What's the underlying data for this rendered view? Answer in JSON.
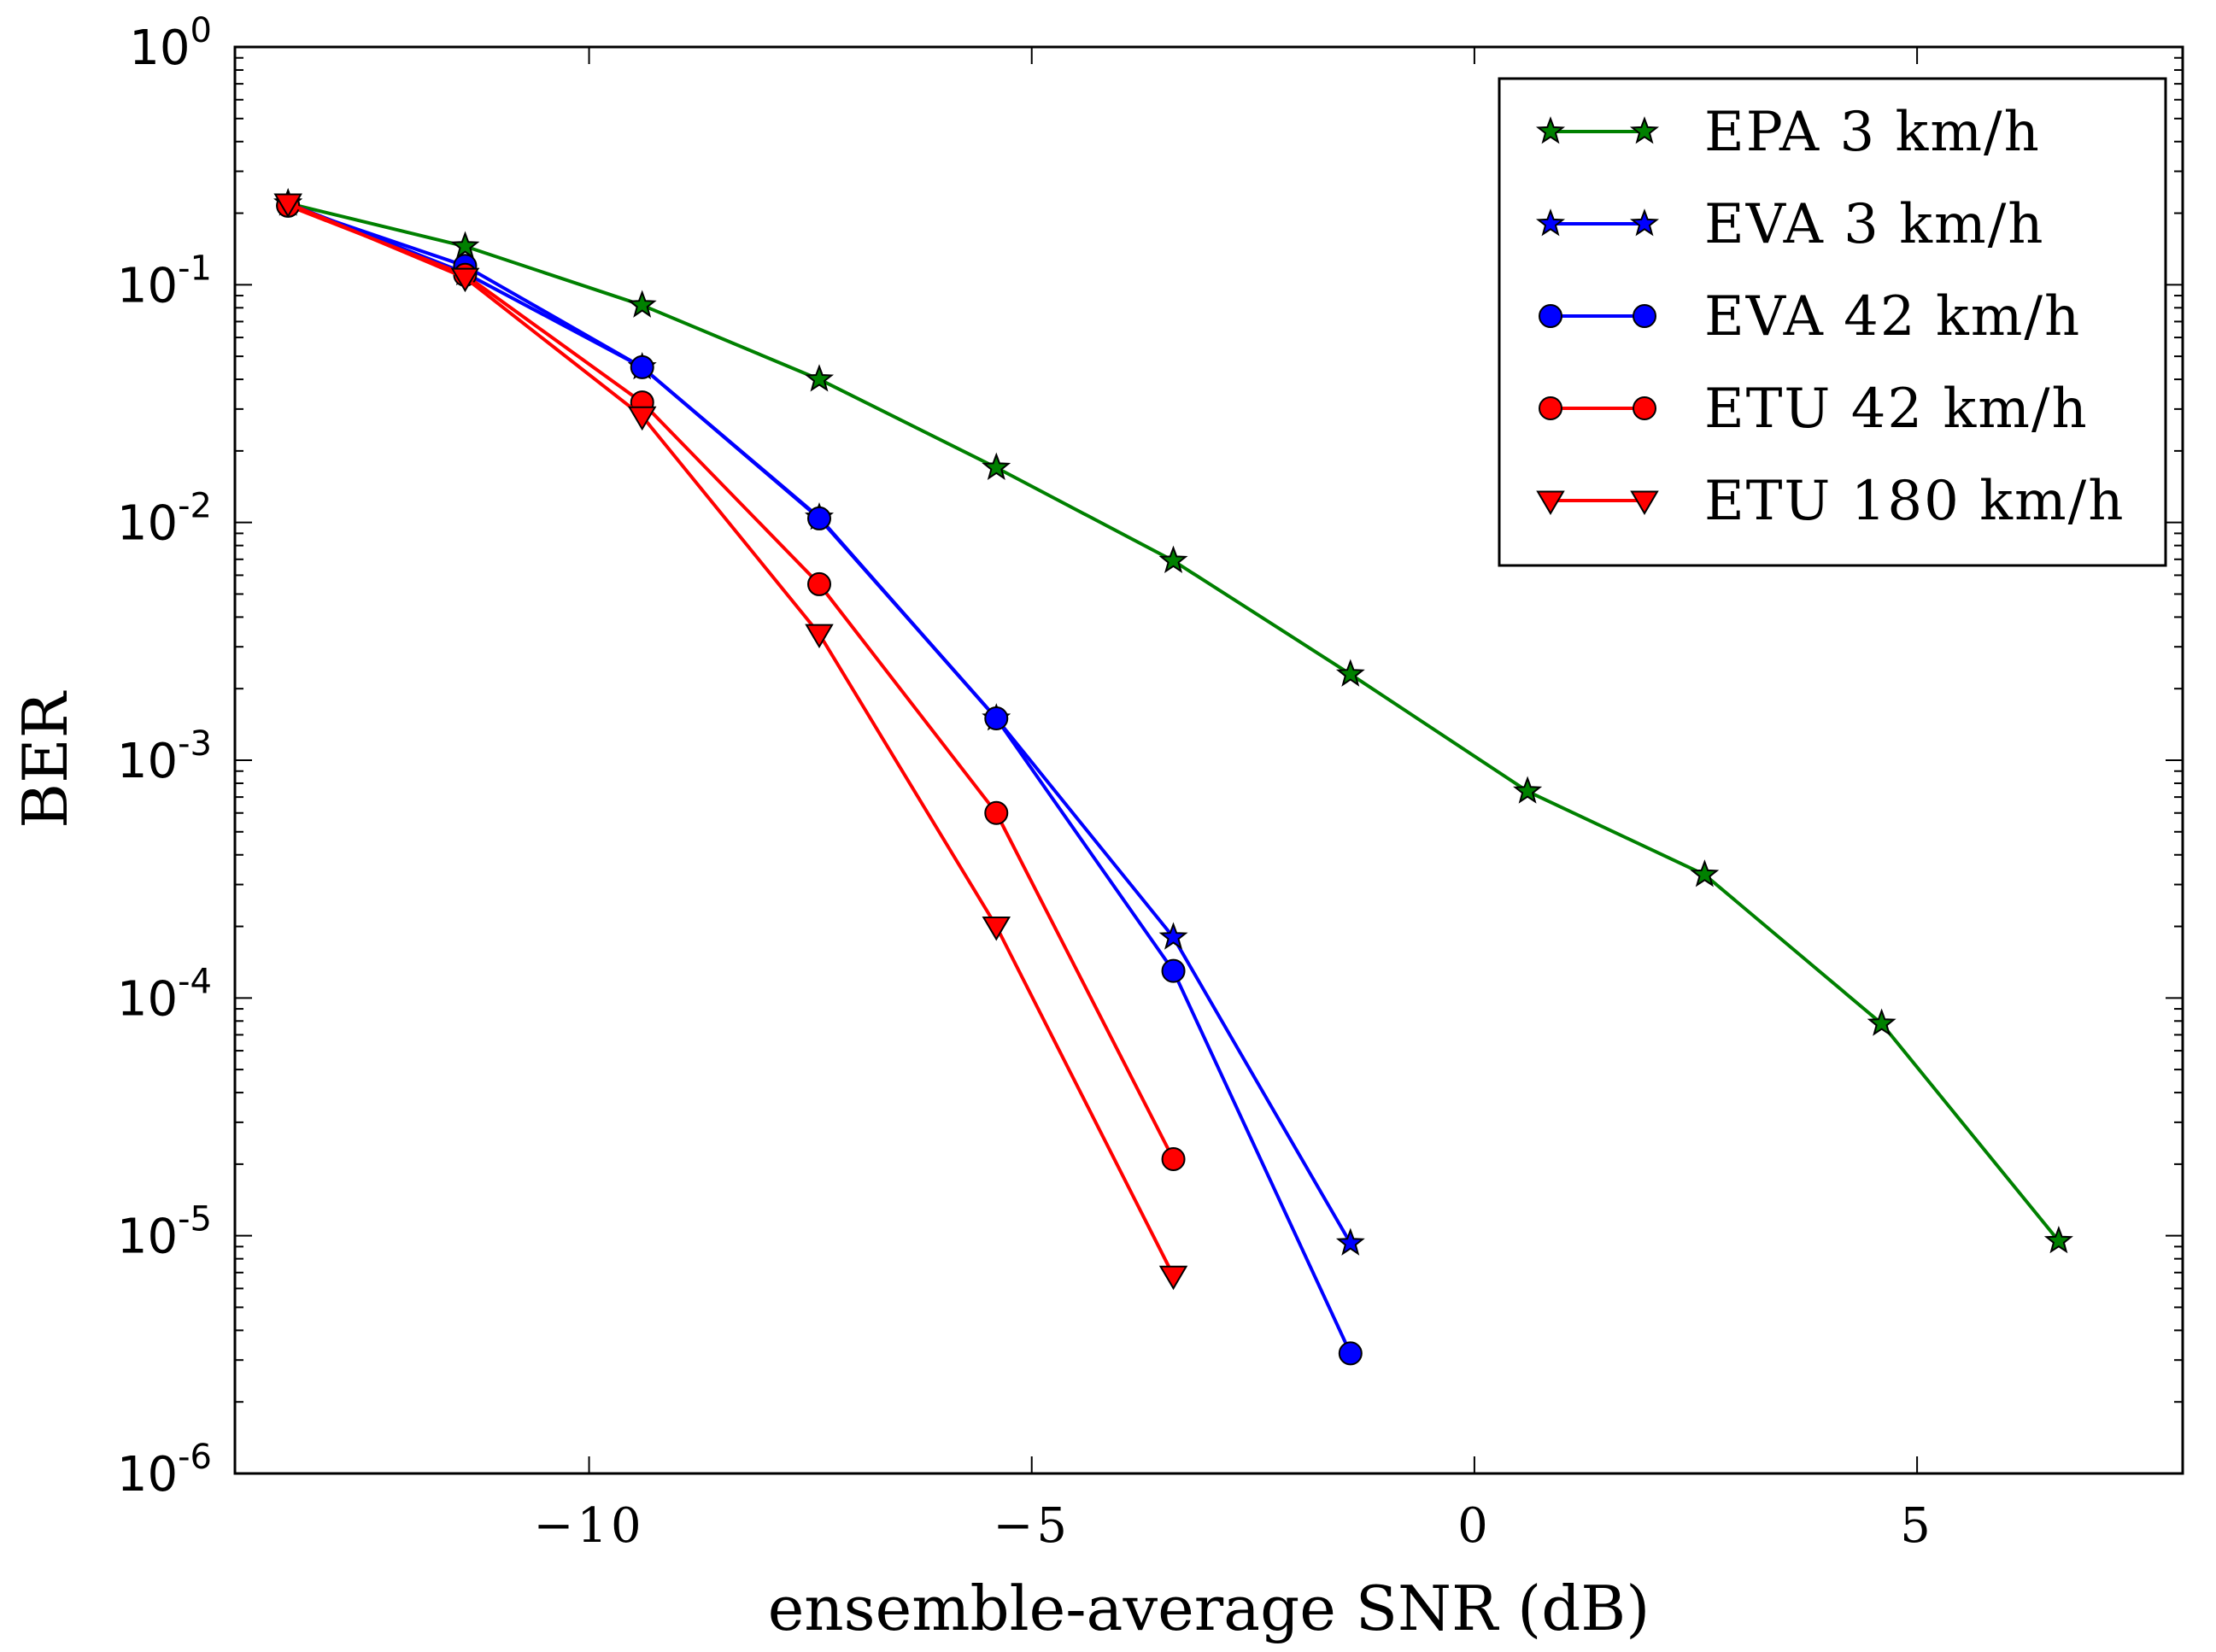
{
  "chart_data": {
    "type": "line",
    "title": "",
    "xlabel": "ensemble-average SNR (dB)",
    "ylabel": "BER",
    "xlim": [
      -14,
      8
    ],
    "ylim": [
      1e-06,
      1
    ],
    "yscale": "log",
    "grid": false,
    "legend_position": "top-right",
    "x_ticks": [
      {
        "value": -10,
        "label": "−10"
      },
      {
        "value": -5,
        "label": "−5"
      },
      {
        "value": 0,
        "label": "0"
      },
      {
        "value": 5,
        "label": "5"
      }
    ],
    "y_ticks": [
      {
        "value": 1,
        "base": "10",
        "exp": "0"
      },
      {
        "value": 0.1,
        "base": "10",
        "exp": "-1"
      },
      {
        "value": 0.01,
        "base": "10",
        "exp": "-2"
      },
      {
        "value": 0.001,
        "base": "10",
        "exp": "-3"
      },
      {
        "value": 0.0001,
        "base": "10",
        "exp": "-4"
      },
      {
        "value": 1e-05,
        "base": "10",
        "exp": "-5"
      },
      {
        "value": 1e-06,
        "base": "10",
        "exp": "-6"
      }
    ],
    "series": [
      {
        "name": "EPA 3  km/h",
        "color": "#008000",
        "marker": "star",
        "x": [
          -13.4,
          -11.4,
          -9.4,
          -7.4,
          -5.4,
          -3.4,
          -1.4,
          0.6,
          2.6,
          4.6,
          6.6
        ],
        "y": [
          0.22,
          0.145,
          0.082,
          0.04,
          0.017,
          0.0069,
          0.0023,
          0.00074,
          0.00033,
          7.8e-05,
          9.5e-06
        ]
      },
      {
        "name": "EVA 3  km/h",
        "color": "#0000ff",
        "marker": "star",
        "x": [
          -13.4,
          -11.4,
          -9.4,
          -7.4,
          -5.4,
          -3.4,
          -1.4
        ],
        "y": [
          0.22,
          0.112,
          0.045,
          0.0105,
          0.0015,
          0.00018,
          9.3e-06
        ]
      },
      {
        "name": "EVA 42  km/h",
        "color": "#0000ff",
        "marker": "circle",
        "x": [
          -13.4,
          -11.4,
          -9.4,
          -7.4,
          -5.4,
          -3.4,
          -1.4
        ],
        "y": [
          0.215,
          0.12,
          0.045,
          0.0104,
          0.0015,
          0.00013,
          3.2e-06
        ]
      },
      {
        "name": "ETU 42  km/h",
        "color": "#ff0000",
        "marker": "circle",
        "x": [
          -13.4,
          -11.4,
          -9.4,
          -7.4,
          -5.4,
          -3.4
        ],
        "y": [
          0.215,
          0.11,
          0.032,
          0.0055,
          0.0006,
          2.1e-05
        ]
      },
      {
        "name": "ETU 180  km/h",
        "color": "#ff0000",
        "marker": "triangle-down",
        "x": [
          -13.4,
          -11.4,
          -9.4,
          -7.4,
          -5.4,
          -3.4
        ],
        "y": [
          0.22,
          0.107,
          0.028,
          0.0034,
          0.0002,
          6.8e-06
        ]
      }
    ]
  }
}
